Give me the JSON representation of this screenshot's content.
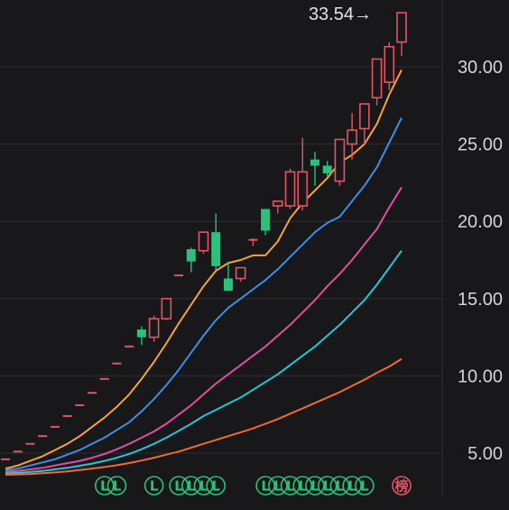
{
  "chart_data": {
    "type": "candlestick",
    "last_price": "33.54",
    "last_price_arrow": "→",
    "y_ticks": [
      "5.00",
      "10.00",
      "15.00",
      "20.00",
      "25.00",
      "30.00"
    ],
    "ylim": [
      3,
      35
    ],
    "grid": true,
    "colors": {
      "background": "#18181b",
      "grid": "#2e2e33",
      "up": "#e25563",
      "down": "#2cc07a",
      "tick_text": "#d4d4d8"
    },
    "candles": [
      {
        "o": 4.6,
        "h": 4.6,
        "l": 4.6,
        "c": 4.6
      },
      {
        "o": 5.1,
        "h": 5.1,
        "l": 5.1,
        "c": 5.1
      },
      {
        "o": 5.6,
        "h": 5.6,
        "l": 5.6,
        "c": 5.6
      },
      {
        "o": 6.1,
        "h": 6.1,
        "l": 6.1,
        "c": 6.1
      },
      {
        "o": 6.7,
        "h": 6.7,
        "l": 6.7,
        "c": 6.7
      },
      {
        "o": 7.4,
        "h": 7.4,
        "l": 7.4,
        "c": 7.4
      },
      {
        "o": 8.1,
        "h": 8.1,
        "l": 8.1,
        "c": 8.1
      },
      {
        "o": 8.9,
        "h": 8.9,
        "l": 8.9,
        "c": 8.9
      },
      {
        "o": 9.8,
        "h": 9.8,
        "l": 9.8,
        "c": 9.8
      },
      {
        "o": 10.8,
        "h": 10.8,
        "l": 10.8,
        "c": 10.8
      },
      {
        "o": 11.9,
        "h": 11.9,
        "l": 11.9,
        "c": 11.9
      },
      {
        "o": 13.0,
        "h": 13.2,
        "l": 12.0,
        "c": 12.5
      },
      {
        "o": 12.5,
        "h": 13.9,
        "l": 12.2,
        "c": 13.7
      },
      {
        "o": 13.7,
        "h": 15.0,
        "l": 13.6,
        "c": 15.0
      },
      {
        "o": 16.5,
        "h": 16.5,
        "l": 16.5,
        "c": 16.5
      },
      {
        "o": 18.2,
        "h": 18.3,
        "l": 16.7,
        "c": 17.4
      },
      {
        "o": 18.1,
        "h": 19.3,
        "l": 17.9,
        "c": 19.3
      },
      {
        "o": 19.3,
        "h": 20.5,
        "l": 16.8,
        "c": 17.1
      },
      {
        "o": 16.3,
        "h": 17.4,
        "l": 15.5,
        "c": 15.5
      },
      {
        "o": 16.3,
        "h": 17.0,
        "l": 16.1,
        "c": 17.0
      },
      {
        "o": 18.8,
        "h": 18.9,
        "l": 18.4,
        "c": 18.8
      },
      {
        "o": 20.8,
        "h": 20.8,
        "l": 19.1,
        "c": 19.4
      },
      {
        "o": 21.0,
        "h": 21.3,
        "l": 20.5,
        "c": 21.3
      },
      {
        "o": 21.0,
        "h": 23.4,
        "l": 20.8,
        "c": 23.2
      },
      {
        "o": 21.0,
        "h": 25.4,
        "l": 20.7,
        "c": 23.2
      },
      {
        "o": 24.0,
        "h": 24.5,
        "l": 22.3,
        "c": 23.6
      },
      {
        "o": 23.6,
        "h": 23.9,
        "l": 22.9,
        "c": 23.1
      },
      {
        "o": 22.6,
        "h": 25.3,
        "l": 22.3,
        "c": 25.3
      },
      {
        "o": 25.0,
        "h": 27.0,
        "l": 24.0,
        "c": 25.9
      },
      {
        "o": 26.0,
        "h": 27.6,
        "l": 25.0,
        "c": 27.6
      },
      {
        "o": 28.0,
        "h": 30.5,
        "l": 27.5,
        "c": 30.5
      },
      {
        "o": 29.0,
        "h": 31.6,
        "l": 28.5,
        "c": 31.3
      },
      {
        "o": 31.6,
        "h": 33.5,
        "l": 30.7,
        "c": 33.5
      }
    ],
    "moving_averages": [
      {
        "color": "#f7a23b",
        "values": [
          4.0,
          4.2,
          4.5,
          4.8,
          5.2,
          5.6,
          6.1,
          6.7,
          7.3,
          8.0,
          8.8,
          9.8,
          10.9,
          12.1,
          13.4,
          14.6,
          15.8,
          16.8,
          17.3,
          17.5,
          17.8,
          17.8,
          18.7,
          20.2,
          21.2,
          22.0,
          22.8,
          23.8,
          24.3,
          25.0,
          26.3,
          28.2,
          29.8
        ]
      },
      {
        "color": "#3b8fe8",
        "values": [
          3.9,
          4.0,
          4.2,
          4.4,
          4.6,
          4.9,
          5.2,
          5.6,
          6.0,
          6.5,
          7.0,
          7.7,
          8.5,
          9.4,
          10.4,
          11.5,
          12.6,
          13.6,
          14.4,
          15.0,
          15.6,
          16.2,
          16.9,
          17.7,
          18.5,
          19.3,
          19.9,
          20.3,
          21.3,
          22.3,
          23.5,
          25.1,
          26.7
        ]
      },
      {
        "color": "#e04ea4",
        "values": [
          3.8,
          3.85,
          3.95,
          4.05,
          4.2,
          4.35,
          4.5,
          4.7,
          4.95,
          5.25,
          5.6,
          6.0,
          6.4,
          6.9,
          7.5,
          8.1,
          8.8,
          9.5,
          10.1,
          10.7,
          11.3,
          11.9,
          12.6,
          13.3,
          14.1,
          14.9,
          15.8,
          16.6,
          17.5,
          18.5,
          19.5,
          20.9,
          22.2
        ]
      },
      {
        "color": "#29c5d4",
        "values": [
          3.7,
          3.72,
          3.78,
          3.85,
          3.95,
          4.05,
          4.18,
          4.32,
          4.5,
          4.7,
          4.95,
          5.25,
          5.6,
          6.0,
          6.45,
          6.9,
          7.4,
          7.8,
          8.2,
          8.6,
          9.1,
          9.6,
          10.1,
          10.7,
          11.3,
          11.9,
          12.6,
          13.3,
          14.1,
          14.9,
          15.9,
          17.0,
          18.1
        ]
      },
      {
        "color": "#f26a2c",
        "values": [
          3.6,
          3.62,
          3.65,
          3.7,
          3.75,
          3.82,
          3.9,
          4.0,
          4.1,
          4.22,
          4.36,
          4.52,
          4.7,
          4.9,
          5.1,
          5.35,
          5.6,
          5.85,
          6.1,
          6.35,
          6.6,
          6.9,
          7.2,
          7.55,
          7.9,
          8.25,
          8.6,
          8.95,
          9.35,
          9.75,
          10.2,
          10.6,
          11.1
        ]
      }
    ],
    "markers": [
      {
        "index": 8,
        "text": "L",
        "color": "#2cc07a"
      },
      {
        "index": 9,
        "text": "L",
        "color": "#2cc07a"
      },
      {
        "index": 12,
        "text": "L",
        "color": "#2cc07a"
      },
      {
        "index": 14,
        "text": "L",
        "color": "#2cc07a"
      },
      {
        "index": 15,
        "text": "L",
        "color": "#2cc07a"
      },
      {
        "index": 16,
        "text": "L",
        "color": "#2cc07a"
      },
      {
        "index": 17,
        "text": "L",
        "color": "#2cc07a"
      },
      {
        "index": 21,
        "text": "L",
        "color": "#2cc07a"
      },
      {
        "index": 22,
        "text": "L",
        "color": "#2cc07a"
      },
      {
        "index": 23,
        "text": "L",
        "color": "#2cc07a"
      },
      {
        "index": 24,
        "text": "L",
        "color": "#2cc07a"
      },
      {
        "index": 25,
        "text": "L",
        "color": "#2cc07a"
      },
      {
        "index": 26,
        "text": "L",
        "color": "#2cc07a"
      },
      {
        "index": 27,
        "text": "L",
        "color": "#2cc07a"
      },
      {
        "index": 28,
        "text": "L",
        "color": "#2cc07a"
      },
      {
        "index": 29,
        "text": "L",
        "color": "#2cc07a"
      },
      {
        "index": 32,
        "text": "榜",
        "color": "#e25563"
      }
    ]
  }
}
